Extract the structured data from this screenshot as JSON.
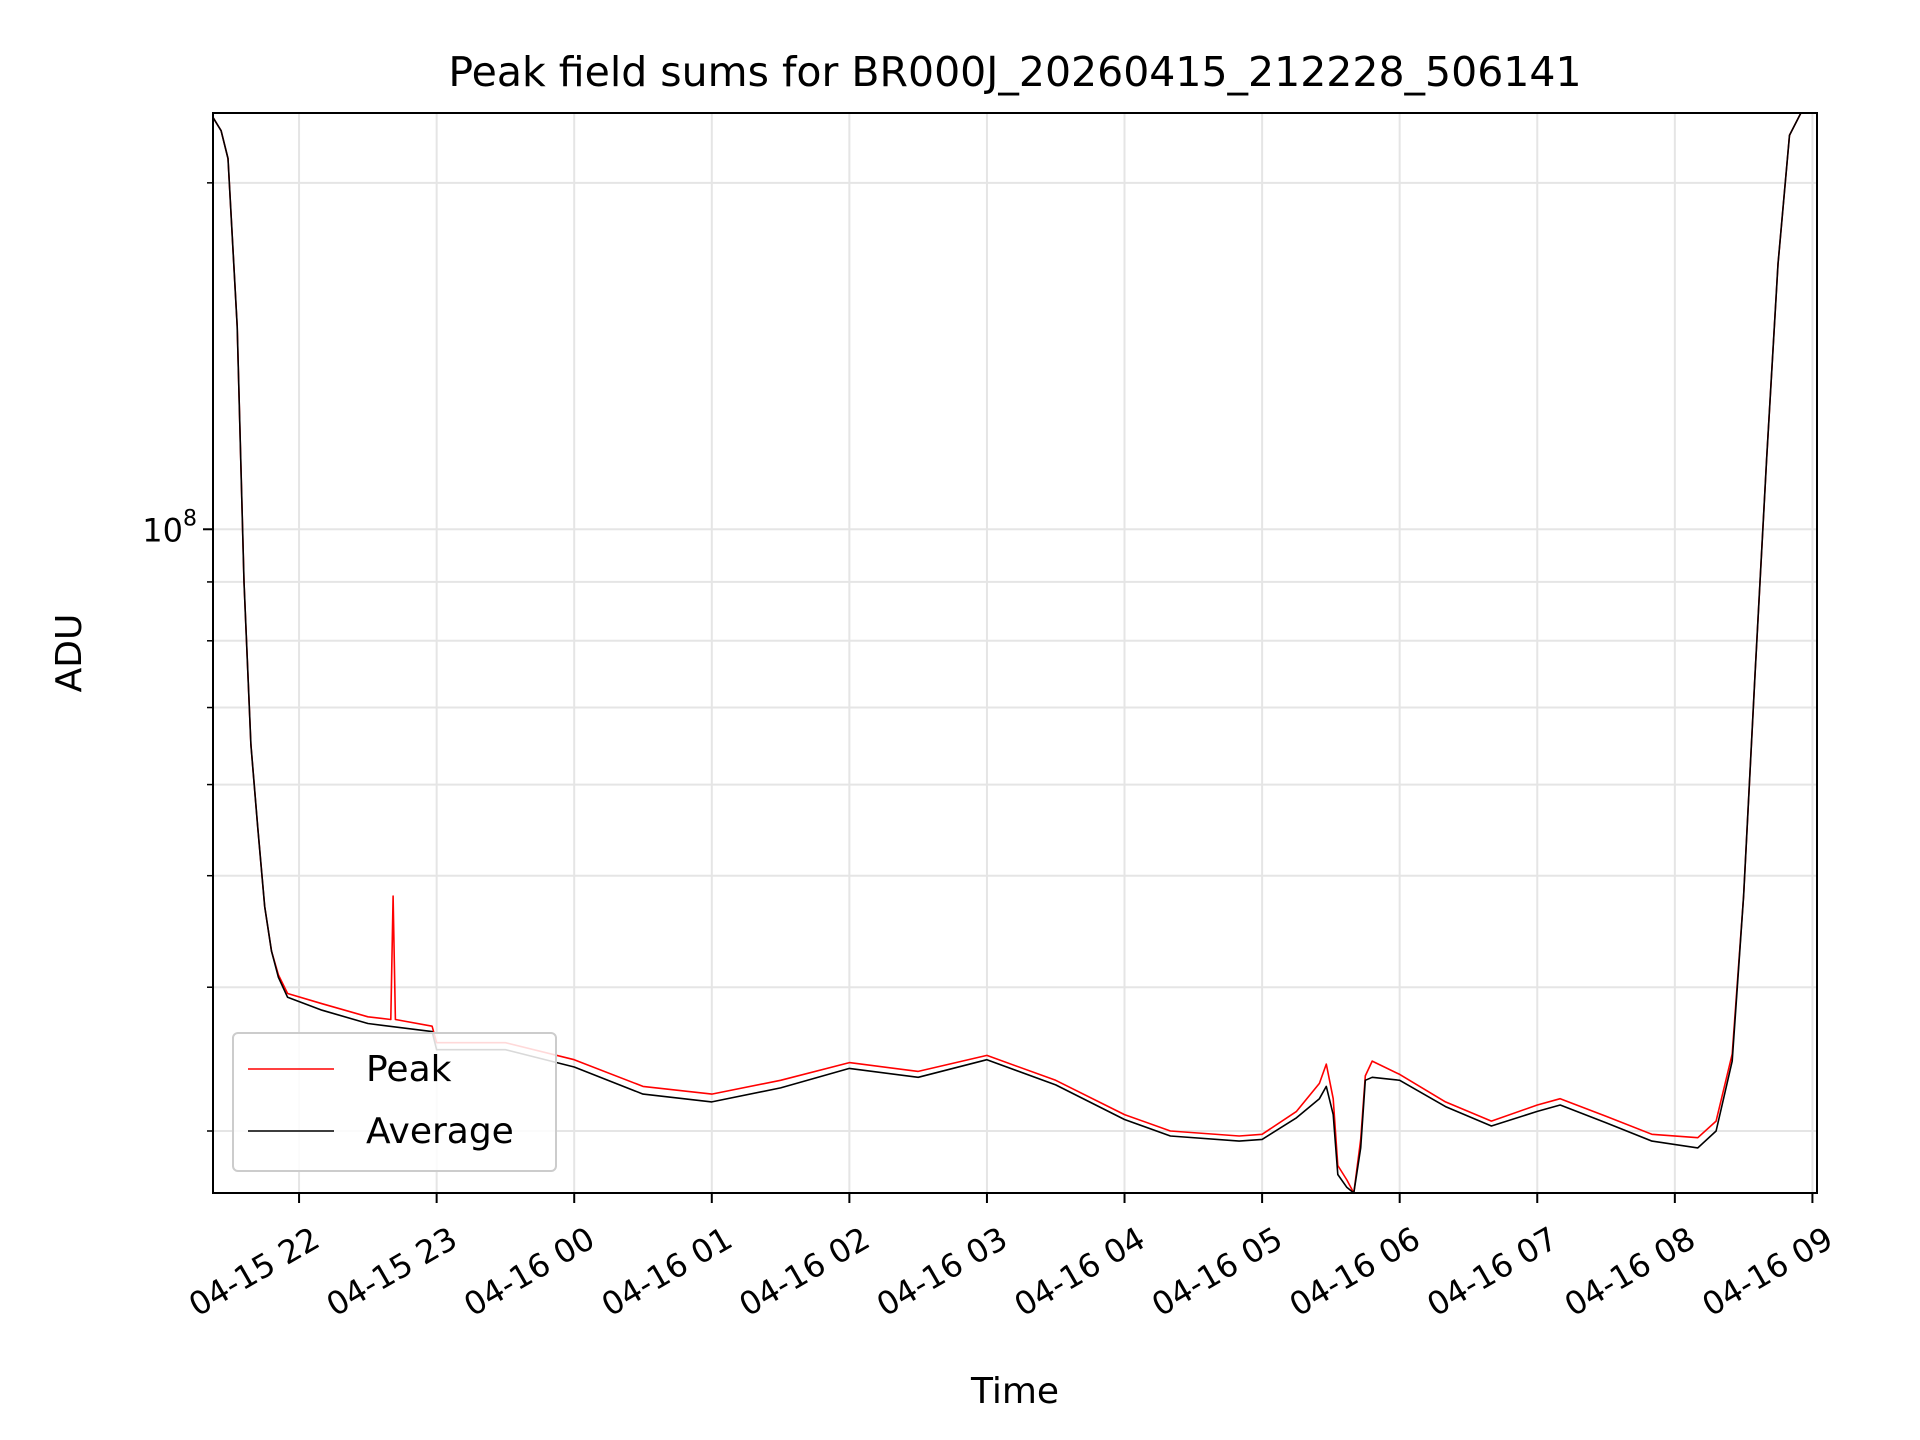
{
  "chart_data": {
    "type": "line",
    "title": "Peak field sums for BR000J_20260415_212228_506141",
    "xlabel": "Time",
    "ylabel": "ADU",
    "yscale": "log",
    "ylim": [
      26500000,
      230000000
    ],
    "xlim": [
      "2026-04-15 21:22:28",
      "2026-04-16 09:02:00"
    ],
    "grid": true,
    "legend_position": "lower-left",
    "x_tick_labels": [
      "04-15 22",
      "04-15 23",
      "04-16 00",
      "04-16 01",
      "04-16 02",
      "04-16 03",
      "04-16 04",
      "04-16 05",
      "04-16 06",
      "04-16 07",
      "04-16 08",
      "04-16 09"
    ],
    "x_tick_values": [
      "2026-04-15 22:00",
      "2026-04-15 23:00",
      "2026-04-16 00:00",
      "2026-04-16 01:00",
      "2026-04-16 02:00",
      "2026-04-16 03:00",
      "2026-04-16 04:00",
      "2026-04-16 05:00",
      "2026-04-16 06:00",
      "2026-04-16 07:00",
      "2026-04-16 08:00",
      "2026-04-16 09:00"
    ],
    "y_major_ticks": [
      {
        "value": 100000000,
        "label": "10",
        "exponent": "8"
      }
    ],
    "y_minor_ticks": [
      30000000,
      40000000,
      50000000,
      60000000,
      70000000,
      80000000,
      90000000,
      200000000
    ],
    "series": [
      {
        "name": "Peak",
        "color": "#ff0000",
        "points": [
          [
            "2026-04-15 21:22:28",
            228000000
          ],
          [
            "2026-04-15 21:26",
            222000000
          ],
          [
            "2026-04-15 21:29",
            210000000
          ],
          [
            "2026-04-15 21:33",
            150000000
          ],
          [
            "2026-04-15 21:36",
            90000000
          ],
          [
            "2026-04-15 21:39",
            65000000
          ],
          [
            "2026-04-15 21:42",
            55000000
          ],
          [
            "2026-04-15 21:45",
            47000000
          ],
          [
            "2026-04-15 21:48",
            43000000
          ],
          [
            "2026-04-15 21:51",
            41000000
          ],
          [
            "2026-04-15 21:55",
            39500000
          ],
          [
            "2026-04-15 22:10",
            38700000
          ],
          [
            "2026-04-15 22:30",
            37700000
          ],
          [
            "2026-04-15 22:40",
            37500000
          ],
          [
            "2026-04-15 22:41",
            48000000
          ],
          [
            "2026-04-15 22:42",
            37500000
          ],
          [
            "2026-04-15 22:58",
            37000000
          ],
          [
            "2026-04-15 23:00",
            35800000
          ],
          [
            "2026-04-15 23:30",
            35800000
          ],
          [
            "2026-04-16 00:00",
            34600000
          ],
          [
            "2026-04-16 00:30",
            32800000
          ],
          [
            "2026-04-16 01:00",
            32300000
          ],
          [
            "2026-04-16 01:30",
            33200000
          ],
          [
            "2026-04-16 02:00",
            34400000
          ],
          [
            "2026-04-16 02:30",
            33800000
          ],
          [
            "2026-04-16 03:00",
            34900000
          ],
          [
            "2026-04-16 03:30",
            33200000
          ],
          [
            "2026-04-16 04:00",
            31000000
          ],
          [
            "2026-04-16 04:20",
            30000000
          ],
          [
            "2026-04-16 04:50",
            29700000
          ],
          [
            "2026-04-16 05:00",
            29800000
          ],
          [
            "2026-04-16 05:15",
            31200000
          ],
          [
            "2026-04-16 05:25",
            33000000
          ],
          [
            "2026-04-16 05:28",
            34300000
          ],
          [
            "2026-04-16 05:31",
            32000000
          ],
          [
            "2026-04-16 05:33",
            28000000
          ],
          [
            "2026-04-16 05:37",
            27200000
          ],
          [
            "2026-04-16 05:40",
            26500000
          ],
          [
            "2026-04-16 05:43",
            29500000
          ],
          [
            "2026-04-16 05:45",
            33500000
          ],
          [
            "2026-04-16 05:48",
            34500000
          ],
          [
            "2026-04-16 06:00",
            33600000
          ],
          [
            "2026-04-16 06:20",
            31800000
          ],
          [
            "2026-04-16 06:40",
            30600000
          ],
          [
            "2026-04-16 07:00",
            31600000
          ],
          [
            "2026-04-16 07:10",
            32000000
          ],
          [
            "2026-04-16 07:30",
            30900000
          ],
          [
            "2026-04-16 07:50",
            29800000
          ],
          [
            "2026-04-16 08:10",
            29600000
          ],
          [
            "2026-04-16 08:18",
            30600000
          ],
          [
            "2026-04-16 08:25",
            35000000
          ],
          [
            "2026-04-16 08:30",
            48000000
          ],
          [
            "2026-04-16 08:35",
            75000000
          ],
          [
            "2026-04-16 08:40",
            115000000
          ],
          [
            "2026-04-16 08:45",
            170000000
          ],
          [
            "2026-04-16 08:50",
            220000000
          ],
          [
            "2026-04-16 08:55",
            230000000
          ],
          [
            "2026-04-16 09:00",
            230000000
          ]
        ]
      },
      {
        "name": "Average",
        "color": "#000000",
        "points": [
          [
            "2026-04-15 21:22:28",
            228000000
          ],
          [
            "2026-04-15 21:26",
            222000000
          ],
          [
            "2026-04-15 21:29",
            210000000
          ],
          [
            "2026-04-15 21:33",
            150000000
          ],
          [
            "2026-04-15 21:36",
            90000000
          ],
          [
            "2026-04-15 21:39",
            65000000
          ],
          [
            "2026-04-15 21:42",
            55000000
          ],
          [
            "2026-04-15 21:45",
            47000000
          ],
          [
            "2026-04-15 21:48",
            43000000
          ],
          [
            "2026-04-15 21:51",
            40800000
          ],
          [
            "2026-04-15 21:55",
            39200000
          ],
          [
            "2026-04-15 22:10",
            38200000
          ],
          [
            "2026-04-15 22:30",
            37200000
          ],
          [
            "2026-04-15 22:58",
            36600000
          ],
          [
            "2026-04-15 23:00",
            35300000
          ],
          [
            "2026-04-15 23:30",
            35300000
          ],
          [
            "2026-04-16 00:00",
            34100000
          ],
          [
            "2026-04-16 00:30",
            32300000
          ],
          [
            "2026-04-16 01:00",
            31800000
          ],
          [
            "2026-04-16 01:30",
            32700000
          ],
          [
            "2026-04-16 02:00",
            34000000
          ],
          [
            "2026-04-16 02:30",
            33400000
          ],
          [
            "2026-04-16 03:00",
            34600000
          ],
          [
            "2026-04-16 03:30",
            32900000
          ],
          [
            "2026-04-16 04:00",
            30700000
          ],
          [
            "2026-04-16 04:20",
            29700000
          ],
          [
            "2026-04-16 04:50",
            29400000
          ],
          [
            "2026-04-16 05:00",
            29500000
          ],
          [
            "2026-04-16 05:15",
            30800000
          ],
          [
            "2026-04-16 05:25",
            32000000
          ],
          [
            "2026-04-16 05:28",
            32800000
          ],
          [
            "2026-04-16 05:31",
            31000000
          ],
          [
            "2026-04-16 05:33",
            27500000
          ],
          [
            "2026-04-16 05:37",
            26800000
          ],
          [
            "2026-04-16 05:40",
            26000000
          ],
          [
            "2026-04-16 05:43",
            29000000
          ],
          [
            "2026-04-16 05:45",
            33200000
          ],
          [
            "2026-04-16 05:48",
            33400000
          ],
          [
            "2026-04-16 06:00",
            33200000
          ],
          [
            "2026-04-16 06:20",
            31500000
          ],
          [
            "2026-04-16 06:40",
            30300000
          ],
          [
            "2026-04-16 07:00",
            31200000
          ],
          [
            "2026-04-16 07:10",
            31600000
          ],
          [
            "2026-04-16 07:30",
            30500000
          ],
          [
            "2026-04-16 07:50",
            29400000
          ],
          [
            "2026-04-16 08:10",
            29000000
          ],
          [
            "2026-04-16 08:18",
            30000000
          ],
          [
            "2026-04-16 08:25",
            34500000
          ],
          [
            "2026-04-16 08:30",
            48000000
          ],
          [
            "2026-04-16 08:35",
            75000000
          ],
          [
            "2026-04-16 08:40",
            115000000
          ],
          [
            "2026-04-16 08:45",
            170000000
          ],
          [
            "2026-04-16 08:50",
            220000000
          ],
          [
            "2026-04-16 08:55",
            230000000
          ],
          [
            "2026-04-16 09:00",
            230000000
          ]
        ]
      }
    ]
  }
}
